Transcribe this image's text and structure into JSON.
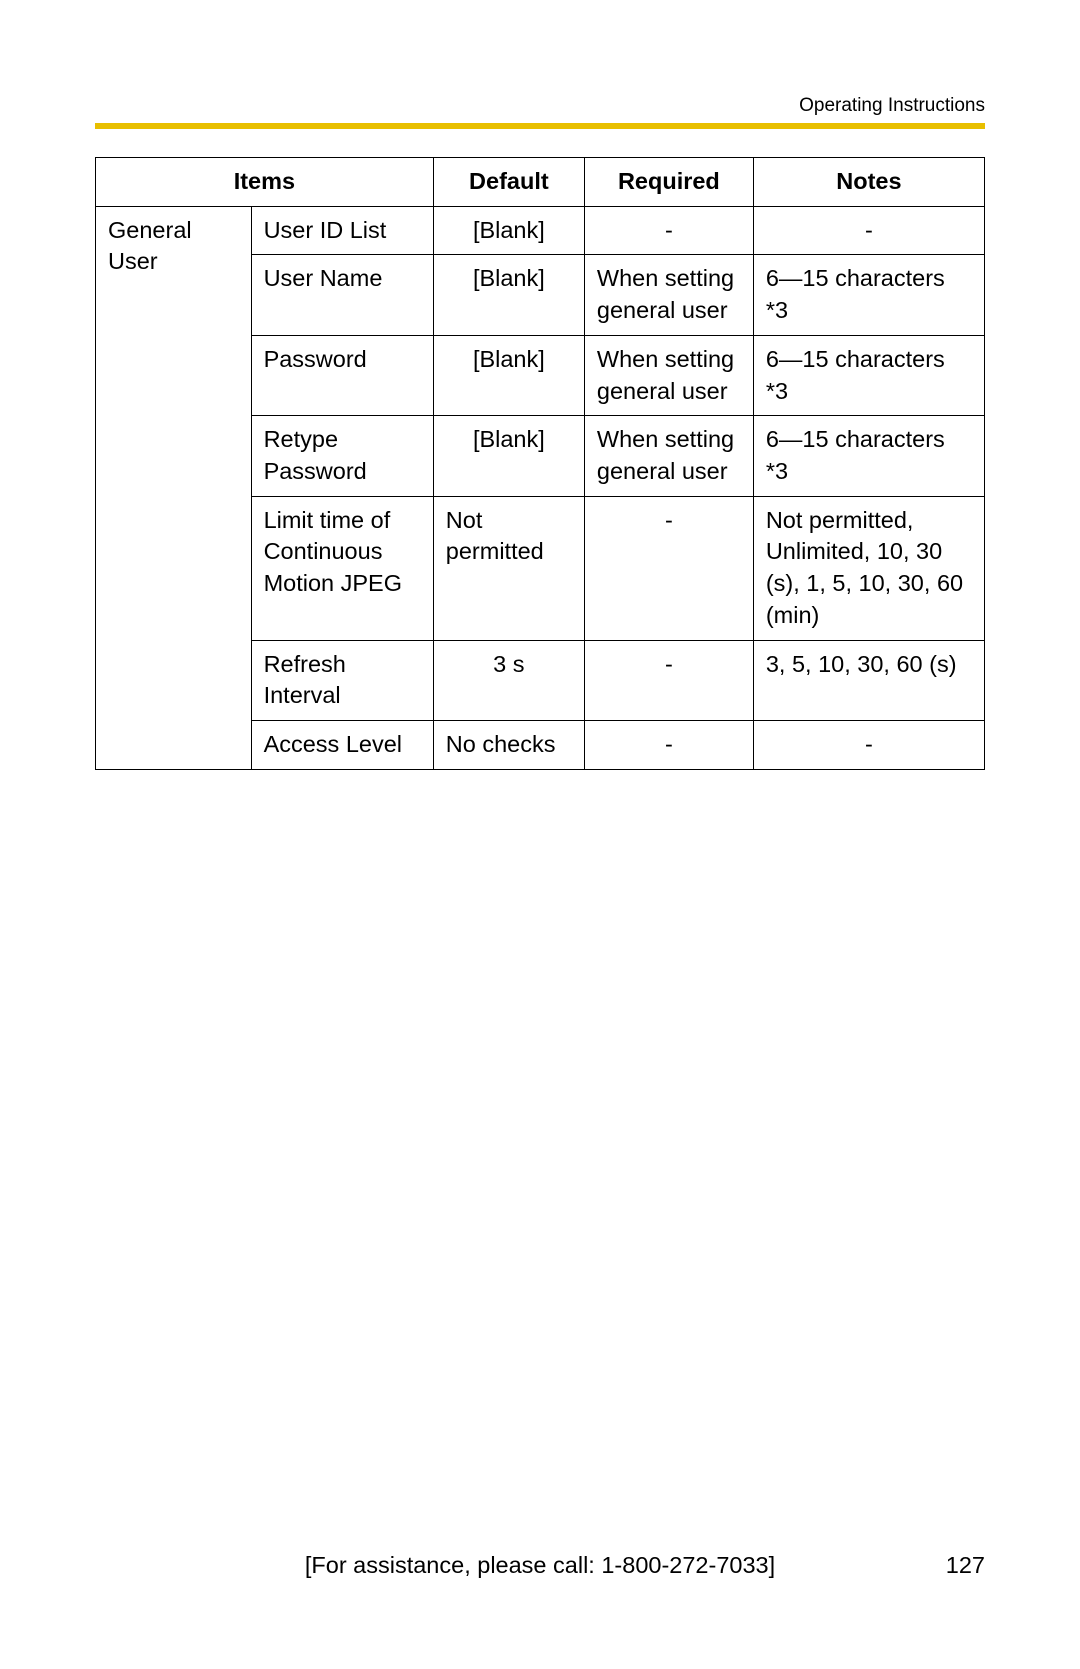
{
  "header": {
    "title": "Operating Instructions",
    "accent_bar_color": "#e8bf00"
  },
  "table": {
    "columns": [
      "Items",
      "Default",
      "Required",
      "Notes"
    ],
    "category": "General User",
    "rows": [
      {
        "item": "User ID List",
        "default": "[Blank]",
        "required": "-",
        "notes": "-",
        "default_align": "center",
        "required_align": "center",
        "notes_align": "center"
      },
      {
        "item": "User Name",
        "default": "[Blank]",
        "required": "When setting general user",
        "notes": "6—15 characters *3",
        "default_align": "center",
        "required_align": "left",
        "notes_align": "left"
      },
      {
        "item": "Password",
        "default": "[Blank]",
        "required": "When setting general user",
        "notes": "6—15 characters *3",
        "default_align": "center",
        "required_align": "left",
        "notes_align": "left"
      },
      {
        "item": "Retype Password",
        "default": "[Blank]",
        "required": "When setting general user",
        "notes": "6—15 characters *3",
        "default_align": "center",
        "required_align": "left",
        "notes_align": "left"
      },
      {
        "item": "Limit time of Continuous Motion JPEG",
        "default": "Not permitted",
        "required": "-",
        "notes": "Not permitted, Unlimited, 10, 30 (s), 1, 5, 10, 30, 60 (min)",
        "default_align": "left",
        "required_align": "center",
        "notes_align": "left"
      },
      {
        "item": "Refresh Interval",
        "default": "3 s",
        "required": "-",
        "notes": "3, 5, 10, 30, 60 (s)",
        "default_align": "center",
        "required_align": "center",
        "notes_align": "left"
      },
      {
        "item": "Access Level",
        "default": "No checks",
        "required": "-",
        "notes": "-",
        "default_align": "left",
        "required_align": "center",
        "notes_align": "center"
      }
    ]
  },
  "footer": {
    "assistance": "[For assistance, please call: 1-800-272-7033]",
    "page_number": "127"
  }
}
